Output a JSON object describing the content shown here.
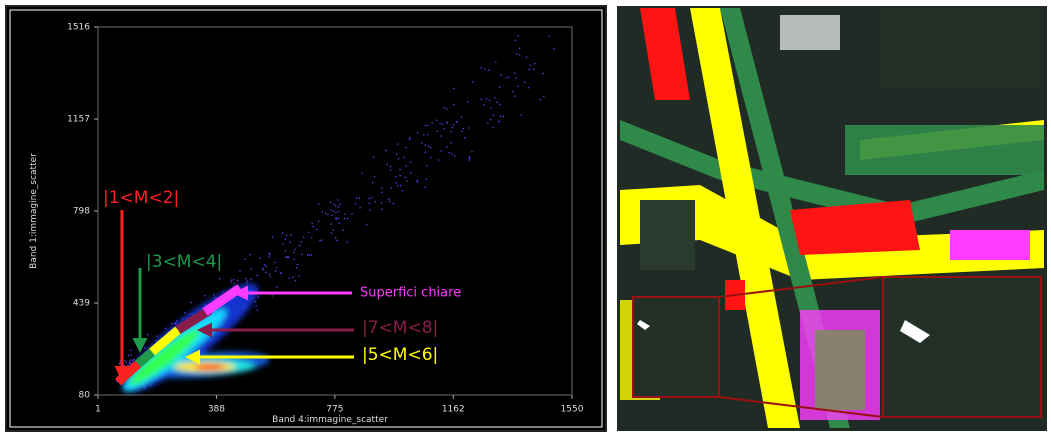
{
  "scatter_panel": {
    "x_label": "Band 4:immagine_scatter",
    "y_label": "Band 1:immagine_scatter",
    "xlim": [
      1,
      1550
    ],
    "ylim": [
      80,
      1516
    ],
    "xticks": [
      1,
      388,
      775,
      1162,
      1550
    ],
    "yticks": [
      80,
      439,
      798,
      1157,
      1516
    ],
    "annotations": [
      {
        "text": "|1<M<2|",
        "color": "#ff2020"
      },
      {
        "text": "|3<M<4|",
        "color": "#1f9a4a"
      },
      {
        "text": "Superfici chiare",
        "color": "#ff3cff"
      },
      {
        "text": "|7<M<8|",
        "color": "#8a1c4a"
      },
      {
        "text": "|5<M<6|",
        "color": "#ffff00"
      }
    ]
  }
}
